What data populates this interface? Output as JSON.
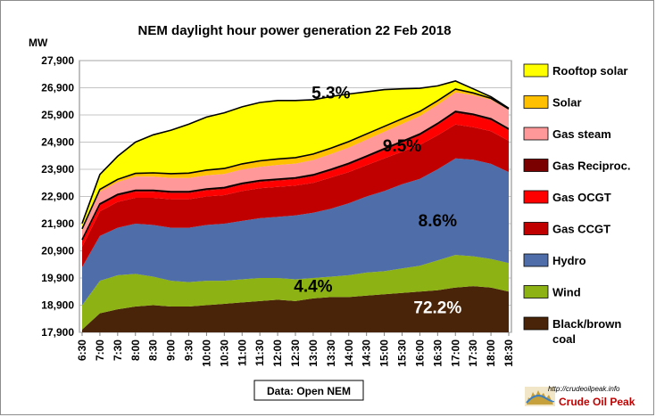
{
  "chart_data": {
    "type": "area",
    "title": "NEM daylight hour power generation 22 Feb 2018",
    "ylabel": "MW",
    "source_note": "Data: Open NEM",
    "ylim": [
      17900,
      27900
    ],
    "y_ticks": [
      "27,900",
      "26,900",
      "25,900",
      "24,900",
      "23,900",
      "22,900",
      "21,900",
      "20,900",
      "19,900",
      "18,900",
      "17,900"
    ],
    "x_ticks": [
      "6:30",
      "7:00",
      "7:30",
      "8:00",
      "8:30",
      "9:00",
      "9:30",
      "10:00",
      "10:30",
      "11:00",
      "11:30",
      "12:00",
      "12:30",
      "13:00",
      "13:30",
      "14:00",
      "14:30",
      "15:00",
      "15:30",
      "16:00",
      "16:30",
      "17:00",
      "17:30",
      "18:00",
      "18:30"
    ],
    "x": [
      "6:30",
      "7:00",
      "7:30",
      "8:00",
      "8:30",
      "9:00",
      "9:30",
      "10:00",
      "10:30",
      "11:00",
      "11:30",
      "12:00",
      "12:30",
      "13:00",
      "13:30",
      "14:00",
      "14:30",
      "15:00",
      "15:30",
      "16:00",
      "16:30",
      "17:00",
      "17:30",
      "18:00",
      "18:30"
    ],
    "grid": true,
    "legend_position": "right",
    "series": [
      {
        "name": "Black/brown coal",
        "color": "#4a2408",
        "values": [
          18000,
          18600,
          18750,
          18850,
          18900,
          18850,
          18850,
          18900,
          18950,
          19000,
          19050,
          19100,
          19050,
          19150,
          19200,
          19200,
          19250,
          19300,
          19350,
          19400,
          19450,
          19550,
          19600,
          19550,
          19400
        ]
      },
      {
        "name": "Wind",
        "color": "#8db214",
        "values": [
          900,
          1200,
          1250,
          1200,
          1050,
          950,
          900,
          900,
          850,
          850,
          850,
          800,
          800,
          750,
          750,
          800,
          850,
          850,
          900,
          950,
          1100,
          1200,
          1100,
          1050,
          1050
        ]
      },
      {
        "name": "Hydro",
        "color": "#4f6da8",
        "values": [
          1400,
          1650,
          1750,
          1850,
          1900,
          1950,
          2000,
          2050,
          2100,
          2150,
          2200,
          2250,
          2350,
          2400,
          2500,
          2650,
          2800,
          2950,
          3100,
          3200,
          3350,
          3550,
          3550,
          3500,
          3350
        ]
      },
      {
        "name": "Gas CCGT",
        "color": "#c00000",
        "values": [
          750,
          900,
          950,
          950,
          1000,
          1050,
          1050,
          1050,
          1050,
          1100,
          1100,
          1100,
          1100,
          1100,
          1150,
          1150,
          1150,
          1200,
          1200,
          1250,
          1250,
          1250,
          1200,
          1200,
          1150
        ]
      },
      {
        "name": "Gas OCGT",
        "color": "#ff0000",
        "values": [
          200,
          220,
          220,
          220,
          220,
          220,
          220,
          220,
          220,
          230,
          230,
          230,
          230,
          240,
          240,
          260,
          280,
          300,
          320,
          340,
          380,
          420,
          420,
          400,
          380
        ]
      },
      {
        "name": "Gas Reciproc.",
        "color": "#7a0000",
        "values": [
          60,
          60,
          60,
          60,
          60,
          60,
          60,
          60,
          60,
          60,
          60,
          60,
          60,
          60,
          60,
          60,
          60,
          60,
          60,
          60,
          60,
          60,
          60,
          60,
          60
        ]
      },
      {
        "name": "Gas steam",
        "color": "#ff9999",
        "values": [
          350,
          450,
          450,
          500,
          500,
          500,
          500,
          500,
          500,
          500,
          500,
          520,
          520,
          540,
          560,
          580,
          600,
          620,
          640,
          660,
          680,
          700,
          700,
          700,
          700
        ]
      },
      {
        "name": "Solar",
        "color": "#ffc000",
        "values": [
          50,
          80,
          100,
          120,
          140,
          160,
          180,
          190,
          200,
          210,
          220,
          220,
          220,
          220,
          220,
          220,
          210,
          200,
          190,
          170,
          150,
          120,
          80,
          50,
          30
        ]
      },
      {
        "name": "Rooftop solar",
        "color": "#ffff00",
        "values": [
          200,
          550,
          850,
          1150,
          1400,
          1600,
          1800,
          1950,
          2050,
          2100,
          2150,
          2150,
          2100,
          2000,
          1900,
          1750,
          1550,
          1350,
          1100,
          850,
          550,
          300,
          150,
          60,
          30
        ]
      }
    ],
    "annotations": [
      {
        "text": "5.3%",
        "x": "13:30",
        "y": 26500
      },
      {
        "text": "9.5%",
        "x": "15:30",
        "y": 24550
      },
      {
        "text": "8.6%",
        "x": "16:30",
        "y": 21800
      },
      {
        "text": "4.4%",
        "x": "13:00",
        "y": 19400
      },
      {
        "text": "72.2%",
        "x": "16:30",
        "y": 18600
      }
    ]
  },
  "legend_items": [
    {
      "label": "Rooftop solar",
      "color": "#ffff00"
    },
    {
      "label": "Solar",
      "color": "#ffc000"
    },
    {
      "label": "Gas steam",
      "color": "#ff9999"
    },
    {
      "label": "Gas Reciproc.",
      "color": "#7a0000"
    },
    {
      "label": "Gas OCGT",
      "color": "#ff0000"
    },
    {
      "label": "Gas CCGT",
      "color": "#c00000"
    },
    {
      "label": "Hydro",
      "color": "#4f6da8"
    },
    {
      "label": "Wind",
      "color": "#8db214"
    },
    {
      "label": "Black/brown",
      "label2": "coal",
      "color": "#4a2408"
    }
  ],
  "logo": {
    "url_text": "http://crudeoilpeak.info",
    "name": "Crude Oil Peak"
  }
}
